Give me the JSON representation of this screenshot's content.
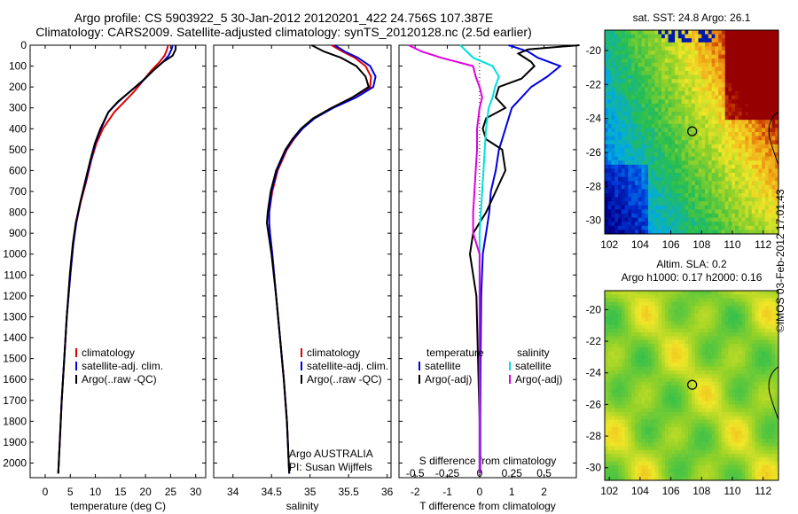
{
  "title": {
    "line1": "Argo profile: CS 5903922_5 30-Jan-2012 20120201_422 24.756S 107.387E",
    "line2": "Climatology: CARS2009. Satellite-adjusted climatology: synTS_20120128.nc (2.5d earlier)"
  },
  "watermark": "©IMOS 03-Feb-2012 17:01:43",
  "colors": {
    "climatology": "#e00000",
    "satellite": "#0000e0",
    "argo": "#000000",
    "salinity_sat": "#00e0e0",
    "salinity_argo": "#e000e0"
  },
  "chart_data": [
    {
      "id": "temperature",
      "type": "line",
      "xlabel": "temperature (deg C)",
      "ylabel": "",
      "xlim": [
        -3,
        32
      ],
      "ylim": [
        2070,
        0
      ],
      "xticks": [
        "0",
        "5",
        "10",
        "15",
        "20",
        "25",
        "30"
      ],
      "yticks": [
        "0",
        "100",
        "200",
        "300",
        "400",
        "500",
        "600",
        "700",
        "800",
        "900",
        "1000",
        "1100",
        "1200",
        "1300",
        "1400",
        "1500",
        "1600",
        "1700",
        "1800",
        "1900",
        "2000"
      ],
      "legend": [
        "climatology",
        "satellite-adj. clim.",
        "Argo(..raw -QC)"
      ],
      "series": [
        {
          "name": "climatology",
          "color": "#e00000",
          "depth": [
            0,
            20,
            50,
            80,
            120,
            170,
            220,
            270,
            320,
            400,
            470,
            550,
            650,
            750,
            850,
            950,
            1100,
            1300,
            1500,
            1700,
            1900,
            2050
          ],
          "values": [
            24.5,
            24.3,
            23.8,
            22.8,
            21.2,
            19.5,
            17.8,
            15.8,
            13.8,
            11.5,
            10.2,
            9.2,
            8.2,
            7.1,
            6.2,
            5.6,
            5.0,
            4.3,
            3.8,
            3.3,
            2.9,
            2.6
          ]
        },
        {
          "name": "satellite-adj. clim.",
          "color": "#0000e0",
          "depth": [
            0,
            20,
            50,
            80,
            120,
            170,
            220,
            270,
            320,
            400,
            470,
            550,
            650,
            750,
            850,
            950,
            1100,
            1300,
            1500,
            1700,
            1900,
            2050
          ],
          "values": [
            25.4,
            25.2,
            24.6,
            23.5,
            21.6,
            19.5,
            17.0,
            14.6,
            12.6,
            11.1,
            10.0,
            9.1,
            8.1,
            7.0,
            6.2,
            5.6,
            5.0,
            4.3,
            3.8,
            3.3,
            2.9,
            2.6
          ]
        },
        {
          "name": "Argo(..raw -QC)",
          "color": "#000000",
          "depth": [
            0,
            20,
            50,
            80,
            120,
            170,
            220,
            270,
            320,
            400,
            470,
            550,
            650,
            750,
            850,
            950,
            1100,
            1300,
            1500,
            1700,
            1900,
            2050
          ],
          "values": [
            26.0,
            26.0,
            25.4,
            23.5,
            21.6,
            19.4,
            17.0,
            14.5,
            12.6,
            11.0,
            9.9,
            9.0,
            8.0,
            7.0,
            6.1,
            5.5,
            4.9,
            4.3,
            3.8,
            3.3,
            2.9,
            2.6
          ]
        }
      ]
    },
    {
      "id": "salinity",
      "type": "line",
      "xlabel": "salinity",
      "ylabel": "",
      "xlim": [
        33.75,
        36.05
      ],
      "ylim": [
        2070,
        0
      ],
      "xticks": [
        "34",
        "34.5",
        "35",
        "35.5",
        "36"
      ],
      "legend": [
        "climatology",
        "satellite-adj. clim.",
        "Argo(..raw -QC)"
      ],
      "annotation": [
        "Argo AUSTRALIA",
        "PI: Susan Wijffels"
      ],
      "series": [
        {
          "name": "climatology",
          "color": "#e00000",
          "depth": [
            0,
            30,
            60,
            100,
            150,
            200,
            250,
            300,
            350,
            400,
            450,
            500,
            600,
            700,
            800,
            850,
            900,
            1000,
            1200,
            1400,
            1600,
            1800,
            2050
          ],
          "values": [
            35.28,
            35.42,
            35.58,
            35.72,
            35.79,
            35.78,
            35.55,
            35.28,
            35.05,
            34.9,
            34.79,
            34.7,
            34.58,
            34.51,
            34.47,
            34.47,
            34.48,
            34.51,
            34.56,
            34.61,
            34.66,
            34.7,
            34.73
          ]
        },
        {
          "name": "satellite-adj. clim.",
          "color": "#0000e0",
          "depth": [
            0,
            30,
            60,
            100,
            150,
            200,
            250,
            300,
            350,
            400,
            450,
            500,
            600,
            700,
            800,
            850,
            900,
            1000,
            1200,
            1400,
            1600,
            1800,
            2050
          ],
          "values": [
            35.32,
            35.45,
            35.62,
            35.78,
            35.85,
            35.82,
            35.6,
            35.3,
            35.06,
            34.9,
            34.78,
            34.69,
            34.57,
            34.5,
            34.47,
            34.47,
            34.48,
            34.51,
            34.56,
            34.61,
            34.66,
            34.7,
            34.73
          ]
        },
        {
          "name": "Argo(..raw -QC)",
          "color": "#000000",
          "depth": [
            0,
            30,
            60,
            100,
            150,
            200,
            250,
            300,
            350,
            400,
            450,
            500,
            600,
            700,
            800,
            850,
            900,
            1000,
            1200,
            1400,
            1600,
            1800,
            2050
          ],
          "values": [
            35.02,
            35.18,
            35.4,
            35.6,
            35.72,
            35.76,
            35.55,
            35.28,
            35.04,
            34.88,
            34.77,
            34.68,
            34.56,
            34.49,
            34.45,
            34.44,
            34.46,
            34.5,
            34.56,
            34.61,
            34.66,
            34.7,
            34.73
          ]
        }
      ]
    },
    {
      "id": "differences",
      "type": "line",
      "xlabel": "T difference from climatology",
      "x2label": "S difference from climatology",
      "xlim": [
        -2.5,
        3.0
      ],
      "x2lim": [
        -0.625,
        0.75
      ],
      "ylim": [
        2070,
        0
      ],
      "xticks": [
        "-2",
        "-1",
        "0",
        "1",
        "2"
      ],
      "x2ticks": [
        "-0.5",
        "-0.25",
        "0",
        "0.25",
        "0.5"
      ],
      "legend": {
        "temperature": [
          "satellite",
          "Argo(-adj)"
        ],
        "salinity": [
          "satellite",
          "Argo(-adj)"
        ]
      },
      "legend_titles": [
        "temperature",
        "salinity"
      ],
      "series": [
        {
          "name": "T satellite",
          "color": "#0000e0",
          "depth": [
            0,
            30,
            60,
            100,
            150,
            200,
            250,
            300,
            350,
            400,
            450,
            500,
            600,
            700,
            800,
            850,
            900,
            1000,
            1200,
            1500,
            1800,
            2050
          ],
          "values": [
            0.9,
            1.5,
            1.8,
            2.5,
            2.1,
            1.6,
            1.3,
            1.0,
            0.9,
            0.8,
            0.7,
            0.6,
            0.5,
            0.35,
            0.3,
            0.25,
            0.2,
            0.1,
            0.05,
            0.03,
            0.02,
            0.02
          ]
        },
        {
          "name": "T Argo(-adj)",
          "color": "#000000",
          "depth": [
            0,
            20,
            40,
            60,
            80,
            100,
            130,
            160,
            200,
            250,
            300,
            350,
            400,
            450,
            500,
            600,
            700,
            800,
            900,
            1000,
            1200,
            1500,
            1800,
            2050
          ],
          "values": [
            3.1,
            1.5,
            1.2,
            1.4,
            1.6,
            1.7,
            1.5,
            1.3,
            0.6,
            0.5,
            0.8,
            0.2,
            0.1,
            0.2,
            0.7,
            0.8,
            0.5,
            0.2,
            -0.2,
            -0.3,
            -0.1,
            -0.05,
            0.0,
            0.0
          ]
        },
        {
          "name": "S satellite",
          "color": "#00e0e0",
          "depth": [
            0,
            30,
            60,
            100,
            150,
            200,
            250,
            300,
            400,
            500,
            600,
            700,
            800,
            900,
            1000,
            1200,
            1500,
            1800,
            2050
          ],
          "values": [
            -0.15,
            -0.1,
            -0.05,
            0.1,
            0.15,
            0.12,
            0.1,
            0.07,
            0.05,
            0.04,
            0.03,
            0.02,
            0.01,
            0.0,
            0.0,
            0.0,
            0.0,
            0.0,
            0.0
          ]
        },
        {
          "name": "S Argo(-adj)",
          "color": "#e000e0",
          "depth": [
            0,
            30,
            60,
            100,
            150,
            200,
            250,
            300,
            400,
            500,
            600,
            700,
            800,
            900,
            1000,
            1200,
            1500,
            1800,
            2050
          ],
          "values": [
            -0.55,
            -0.45,
            -0.3,
            -0.05,
            -0.03,
            0.0,
            0.02,
            0.0,
            -0.02,
            -0.02,
            -0.03,
            -0.04,
            -0.05,
            -0.05,
            0.0,
            0.0,
            0.0,
            0.0,
            0.0
          ]
        }
      ]
    },
    {
      "id": "sst-map",
      "type": "heatmap",
      "title": "sat. SST: 24.8  Argo: 26.1",
      "xticks": [
        "102",
        "104",
        "106",
        "108",
        "110",
        "112"
      ],
      "yticks": [
        "-20",
        "-22",
        "-24",
        "-26",
        "-28",
        "-30"
      ],
      "xlim": [
        101.7,
        113.0
      ],
      "ylim": [
        -30.8,
        -18.8
      ],
      "marker": {
        "lon": 107.387,
        "lat": -24.756
      }
    },
    {
      "id": "sla-map",
      "type": "heatmap",
      "title_line1": "Altim. SLA: 0.2",
      "title_line2": "Argo h1000: 0.17  h2000: 0.16",
      "xticks": [
        "102",
        "104",
        "106",
        "108",
        "110",
        "112"
      ],
      "yticks": [
        "-20",
        "-22",
        "-24",
        "-26",
        "-28",
        "-30"
      ],
      "xlim": [
        101.7,
        113.0
      ],
      "ylim": [
        -30.8,
        -18.8
      ],
      "marker": {
        "lon": 107.387,
        "lat": -24.756
      }
    }
  ]
}
